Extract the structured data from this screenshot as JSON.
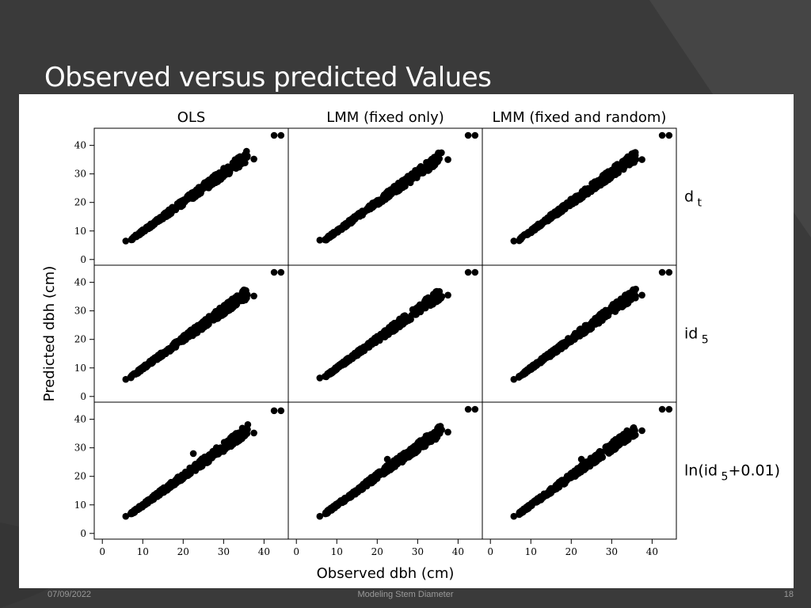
{
  "slide": {
    "title": "Observed versus predicted Values",
    "footer_date": "07/09/2022",
    "footer_center": "Modeling Stem Diameter",
    "page_number": "18"
  },
  "chart_data": {
    "type": "scatter",
    "layout": "3x3 lattice",
    "xlabel": "Observed dbh (cm)",
    "ylabel": "Predicted dbh (cm)",
    "column_labels": [
      "OLS",
      "LMM (fixed only)",
      "LMM (fixed and random)"
    ],
    "row_labels": [
      {
        "main": "d",
        "sub": "t",
        "suffix": ""
      },
      {
        "main": "id",
        "sub": "5",
        "suffix": ""
      },
      {
        "main": "ln(id",
        "sub": "5",
        "suffix": "+0.01)"
      }
    ],
    "xticks": [
      0,
      10,
      20,
      30,
      40
    ],
    "yticks": [
      0,
      10,
      20,
      30,
      40
    ],
    "xlim": [
      -2,
      46
    ],
    "ylim": [
      -2,
      46
    ],
    "grid": false,
    "marker": "filled circle, black",
    "panels": [
      {
        "row": 0,
        "col": 0,
        "slope": 1.02,
        "intercept": -0.3,
        "outliers": [
          [
            42.5,
            43.5
          ],
          [
            44.2,
            43.5
          ],
          [
            37.5,
            35.2
          ],
          [
            5.8,
            6.5
          ]
        ]
      },
      {
        "row": 0,
        "col": 1,
        "slope": 1.02,
        "intercept": -0.3,
        "outliers": [
          [
            42.5,
            43.5
          ],
          [
            44.2,
            43.5
          ],
          [
            37.5,
            35.0
          ],
          [
            5.8,
            6.8
          ]
        ]
      },
      {
        "row": 0,
        "col": 2,
        "slope": 1.02,
        "intercept": -0.3,
        "outliers": [
          [
            42.5,
            43.5
          ],
          [
            44.2,
            43.5
          ],
          [
            37.5,
            35.0
          ],
          [
            5.8,
            6.5
          ]
        ]
      },
      {
        "row": 1,
        "col": 0,
        "slope": 1.02,
        "intercept": -0.3,
        "outliers": [
          [
            42.5,
            43.5
          ],
          [
            44.2,
            43.5
          ],
          [
            37.5,
            35.2
          ],
          [
            5.8,
            6.0
          ]
        ]
      },
      {
        "row": 1,
        "col": 1,
        "slope": 1.02,
        "intercept": -0.3,
        "outliers": [
          [
            42.5,
            43.5
          ],
          [
            44.2,
            43.5
          ],
          [
            37.5,
            35.5
          ],
          [
            5.8,
            6.5
          ]
        ]
      },
      {
        "row": 1,
        "col": 2,
        "slope": 1.02,
        "intercept": -0.3,
        "outliers": [
          [
            42.5,
            43.5
          ],
          [
            44.2,
            43.5
          ],
          [
            37.5,
            35.5
          ],
          [
            5.8,
            6.0
          ]
        ]
      },
      {
        "row": 2,
        "col": 0,
        "slope": 1.02,
        "intercept": -0.3,
        "outliers": [
          [
            42.5,
            43.0
          ],
          [
            44.2,
            43.0
          ],
          [
            37.5,
            35.2
          ],
          [
            5.8,
            6.0
          ],
          [
            22.5,
            28.0
          ]
        ]
      },
      {
        "row": 2,
        "col": 1,
        "slope": 1.02,
        "intercept": -0.3,
        "outliers": [
          [
            42.5,
            43.5
          ],
          [
            44.2,
            43.5
          ],
          [
            37.5,
            35.5
          ],
          [
            5.8,
            6.0
          ],
          [
            22.5,
            26.0
          ]
        ]
      },
      {
        "row": 2,
        "col": 2,
        "slope": 1.02,
        "intercept": -0.3,
        "outliers": [
          [
            42.5,
            43.5
          ],
          [
            44.2,
            43.5
          ],
          [
            37.5,
            36.0
          ],
          [
            5.8,
            6.0
          ],
          [
            22.5,
            26.0
          ]
        ]
      }
    ]
  },
  "colors": {
    "background": "#3c3c3c",
    "panel": "#ffffff",
    "marker": "#000000",
    "title": "#ffffff",
    "footer": "#9a9a9a"
  }
}
